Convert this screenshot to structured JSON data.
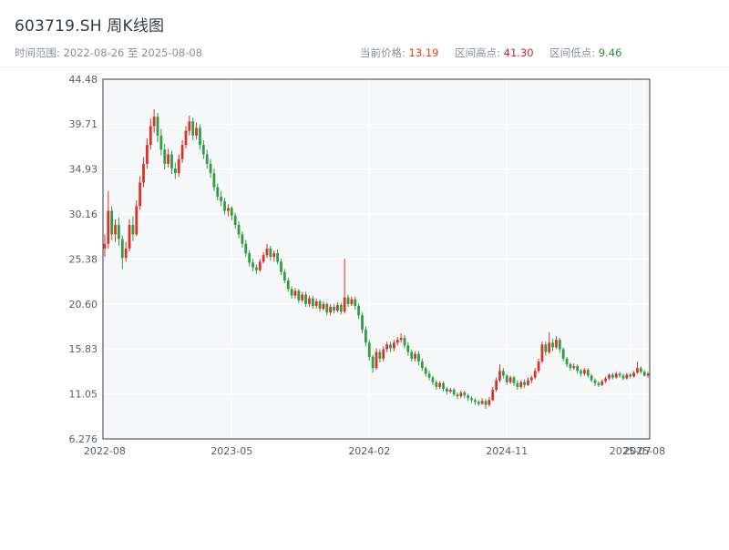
{
  "header": {
    "title": "603719.SH 周K线图",
    "time_range": "时间范围: 2022-08-26 至 2025-08-08",
    "stats": [
      {
        "label": "当前价格:",
        "value": "13.19",
        "color": "#d9480f"
      },
      {
        "label": "区间高点:",
        "value": "41.30",
        "color": "#c92a2a"
      },
      {
        "label": "区间低点:",
        "value": "9.46",
        "color": "#2b8a3e"
      }
    ]
  },
  "chart_data": {
    "type": "candlestick",
    "title": "603719.SH 周K线图",
    "interval": "weekly",
    "start_date": "2022-08-26",
    "end_date": "2025-08-08",
    "current_price": 13.19,
    "range_high": 41.3,
    "range_low": 9.46,
    "ylim": [
      6.276,
      44.48
    ],
    "y_ticks": [
      6.276,
      11.05,
      15.83,
      20.6,
      25.38,
      30.16,
      34.93,
      39.71,
      44.48
    ],
    "y_tick_labels": [
      "6.276",
      "11.05",
      "15.83",
      "20.60",
      "25.38",
      "30.16",
      "34.93",
      "39.71",
      "44.48"
    ],
    "x_tick_labels": [
      "2022-08",
      "2023-05",
      "2024-02",
      "2024-11",
      "2025-07",
      "2025-08"
    ],
    "x_tick_weeks": [
      0,
      36,
      75,
      114,
      149,
      153
    ],
    "up_color": "#d9342b",
    "down_color": "#2f9e44",
    "plot_bg": "#f6f7f9",
    "grid_color": "#ffffff",
    "axis_color": "#3a3a3a",
    "tick_label_color": "#555f6b",
    "grid": true,
    "legend": false,
    "candles_ohlc": [
      [
        26.5,
        28.0,
        25.6,
        27.0
      ],
      [
        27.0,
        32.6,
        26.5,
        30.5
      ],
      [
        30.5,
        31.0,
        27.4,
        28.0
      ],
      [
        28.0,
        29.6,
        27.2,
        29.0
      ],
      [
        29.0,
        29.8,
        26.8,
        27.5
      ],
      [
        27.5,
        27.9,
        24.3,
        25.5
      ],
      [
        25.5,
        27.2,
        25.1,
        26.5
      ],
      [
        26.5,
        29.6,
        26.2,
        29.0
      ],
      [
        29.0,
        29.9,
        27.3,
        28.0
      ],
      [
        28.0,
        31.6,
        27.8,
        31.0
      ],
      [
        31.0,
        34.2,
        30.6,
        33.5
      ],
      [
        33.5,
        36.2,
        33.0,
        35.5
      ],
      [
        35.5,
        38.2,
        35.0,
        37.5
      ],
      [
        37.5,
        40.3,
        37.0,
        39.5
      ],
      [
        39.5,
        41.3,
        38.8,
        40.5
      ],
      [
        40.5,
        40.9,
        37.8,
        38.5
      ],
      [
        38.5,
        39.2,
        36.4,
        37.0
      ],
      [
        37.0,
        37.6,
        34.9,
        35.5
      ],
      [
        35.5,
        37.1,
        35.1,
        36.5
      ],
      [
        36.5,
        36.9,
        34.4,
        35.0
      ],
      [
        35.0,
        35.6,
        33.9,
        34.5
      ],
      [
        34.5,
        36.5,
        34.1,
        36.0
      ],
      [
        36.0,
        38.0,
        35.6,
        37.5
      ],
      [
        37.5,
        39.5,
        37.1,
        39.0
      ],
      [
        39.0,
        40.6,
        38.5,
        40.0
      ],
      [
        40.0,
        40.4,
        38.0,
        38.5
      ],
      [
        38.5,
        39.9,
        38.1,
        39.3
      ],
      [
        39.3,
        39.7,
        37.0,
        37.5
      ],
      [
        37.5,
        38.0,
        36.0,
        36.5
      ],
      [
        36.5,
        37.0,
        35.0,
        35.5
      ],
      [
        35.5,
        36.0,
        34.0,
        34.5
      ],
      [
        34.5,
        35.0,
        32.6,
        33.0
      ],
      [
        33.0,
        33.4,
        31.6,
        32.0
      ],
      [
        32.0,
        32.6,
        31.0,
        31.5
      ],
      [
        31.5,
        31.9,
        30.1,
        30.5
      ],
      [
        30.5,
        31.2,
        29.9,
        30.8
      ],
      [
        30.8,
        31.0,
        29.5,
        30.0
      ],
      [
        30.0,
        30.3,
        28.6,
        29.0
      ],
      [
        29.0,
        29.4,
        27.6,
        28.0
      ],
      [
        28.0,
        28.3,
        26.6,
        27.0
      ],
      [
        27.0,
        27.4,
        25.6,
        26.0
      ],
      [
        26.0,
        26.3,
        24.6,
        25.0
      ],
      [
        25.0,
        25.4,
        24.1,
        24.5
      ],
      [
        24.5,
        24.8,
        23.8,
        24.2
      ],
      [
        24.2,
        25.4,
        24.0,
        25.1
      ],
      [
        25.1,
        26.1,
        24.9,
        25.8
      ],
      [
        25.8,
        27.0,
        25.5,
        26.5
      ],
      [
        26.5,
        26.8,
        25.2,
        25.6
      ],
      [
        25.6,
        26.3,
        25.1,
        26.0
      ],
      [
        26.0,
        26.4,
        24.8,
        25.1
      ],
      [
        25.1,
        25.4,
        23.7,
        24.0
      ],
      [
        24.0,
        24.3,
        22.8,
        23.1
      ],
      [
        23.1,
        23.4,
        21.9,
        22.2
      ],
      [
        22.2,
        22.5,
        21.2,
        21.5
      ],
      [
        21.5,
        22.3,
        21.2,
        22.0
      ],
      [
        22.0,
        22.2,
        20.7,
        21.0
      ],
      [
        21.0,
        21.9,
        20.8,
        21.6
      ],
      [
        21.6,
        21.9,
        20.3,
        20.6
      ],
      [
        20.6,
        21.5,
        20.3,
        21.2
      ],
      [
        21.2,
        21.5,
        20.1,
        20.4
      ],
      [
        20.4,
        21.2,
        20.1,
        20.9
      ],
      [
        20.9,
        21.1,
        19.8,
        20.1
      ],
      [
        20.1,
        20.9,
        19.9,
        20.6
      ],
      [
        20.6,
        20.8,
        19.4,
        19.7
      ],
      [
        19.7,
        20.6,
        19.4,
        20.3
      ],
      [
        20.3,
        20.6,
        19.6,
        19.9
      ],
      [
        19.9,
        20.8,
        19.7,
        20.5
      ],
      [
        20.5,
        20.7,
        19.5,
        19.8
      ],
      [
        19.8,
        25.4,
        19.6,
        21.3
      ],
      [
        21.3,
        21.6,
        20.3,
        20.6
      ],
      [
        20.6,
        21.4,
        20.4,
        21.1
      ],
      [
        21.1,
        21.4,
        20.0,
        20.4
      ],
      [
        20.4,
        20.7,
        19.0,
        19.4
      ],
      [
        19.4,
        19.7,
        17.5,
        17.9
      ],
      [
        17.9,
        18.2,
        16.1,
        16.5
      ],
      [
        16.5,
        16.8,
        14.6,
        15.0
      ],
      [
        15.0,
        15.2,
        13.3,
        13.8
      ],
      [
        13.8,
        15.9,
        13.6,
        15.5
      ],
      [
        15.5,
        15.8,
        14.4,
        14.8
      ],
      [
        14.8,
        16.1,
        14.5,
        15.8
      ],
      [
        15.8,
        16.6,
        15.5,
        16.3
      ],
      [
        16.3,
        16.6,
        15.5,
        15.9
      ],
      [
        15.9,
        16.8,
        15.6,
        16.5
      ],
      [
        16.5,
        17.1,
        16.2,
        16.8
      ],
      [
        16.8,
        17.5,
        16.5,
        17.0
      ],
      [
        17.0,
        17.3,
        15.9,
        16.2
      ],
      [
        16.2,
        16.5,
        15.1,
        15.5
      ],
      [
        15.5,
        15.8,
        14.5,
        14.8
      ],
      [
        14.8,
        15.6,
        14.5,
        15.3
      ],
      [
        15.3,
        15.6,
        14.1,
        14.5
      ],
      [
        14.5,
        14.8,
        13.5,
        13.8
      ],
      [
        13.8,
        14.0,
        12.9,
        13.2
      ],
      [
        13.2,
        13.5,
        12.5,
        12.8
      ],
      [
        12.8,
        13.0,
        12.0,
        12.3
      ],
      [
        12.3,
        12.5,
        11.5,
        11.8
      ],
      [
        11.8,
        12.4,
        11.6,
        12.2
      ],
      [
        12.2,
        12.4,
        11.3,
        11.6
      ],
      [
        11.6,
        11.8,
        11.0,
        11.3
      ],
      [
        11.3,
        11.7,
        11.1,
        11.5
      ],
      [
        11.5,
        11.7,
        10.8,
        11.0
      ],
      [
        11.0,
        11.2,
        10.5,
        10.8
      ],
      [
        10.8,
        11.4,
        10.6,
        11.2
      ],
      [
        11.2,
        11.4,
        10.6,
        10.9
      ],
      [
        10.9,
        11.1,
        10.3,
        10.6
      ],
      [
        10.6,
        10.8,
        10.1,
        10.4
      ],
      [
        10.4,
        10.6,
        9.9,
        10.2
      ],
      [
        10.2,
        10.4,
        9.8,
        10.0
      ],
      [
        10.0,
        10.6,
        9.9,
        10.3
      ],
      [
        10.3,
        10.5,
        9.46,
        9.9
      ],
      [
        9.9,
        10.7,
        9.7,
        10.4
      ],
      [
        10.4,
        11.8,
        10.3,
        11.5
      ],
      [
        11.5,
        12.8,
        11.3,
        12.5
      ],
      [
        12.5,
        14.2,
        12.3,
        13.5
      ],
      [
        13.5,
        13.8,
        12.7,
        13.0
      ],
      [
        13.0,
        13.2,
        12.0,
        12.3
      ],
      [
        12.3,
        13.0,
        12.1,
        12.8
      ],
      [
        12.8,
        13.0,
        11.9,
        12.2
      ],
      [
        12.2,
        12.5,
        11.5,
        11.8
      ],
      [
        11.8,
        12.5,
        11.6,
        12.3
      ],
      [
        12.3,
        12.6,
        11.7,
        12.0
      ],
      [
        12.0,
        12.8,
        11.9,
        12.5
      ],
      [
        12.5,
        13.0,
        12.2,
        12.8
      ],
      [
        12.8,
        13.8,
        12.6,
        13.5
      ],
      [
        13.5,
        14.8,
        13.3,
        14.5
      ],
      [
        14.5,
        16.6,
        14.3,
        16.3
      ],
      [
        16.3,
        16.6,
        15.1,
        15.5
      ],
      [
        15.5,
        17.6,
        15.3,
        16.5
      ],
      [
        16.5,
        16.9,
        15.6,
        16.0
      ],
      [
        16.0,
        17.2,
        15.8,
        16.8
      ],
      [
        16.8,
        17.0,
        15.4,
        15.8
      ],
      [
        15.8,
        16.0,
        14.5,
        14.8
      ],
      [
        14.8,
        15.0,
        13.9,
        14.2
      ],
      [
        14.2,
        14.4,
        13.5,
        13.8
      ],
      [
        13.8,
        14.3,
        13.6,
        14.0
      ],
      [
        14.0,
        14.2,
        13.2,
        13.5
      ],
      [
        13.5,
        13.7,
        12.9,
        13.2
      ],
      [
        13.2,
        13.8,
        13.0,
        13.6
      ],
      [
        13.6,
        13.8,
        12.8,
        13.0
      ],
      [
        13.0,
        13.2,
        12.3,
        12.5
      ],
      [
        12.5,
        12.7,
        11.9,
        12.2
      ],
      [
        12.2,
        12.4,
        11.8,
        12.0
      ],
      [
        12.0,
        12.6,
        11.9,
        12.4
      ],
      [
        12.4,
        12.9,
        12.2,
        12.7
      ],
      [
        12.7,
        13.2,
        12.5,
        13.1
      ],
      [
        13.1,
        13.3,
        12.6,
        12.8
      ],
      [
        12.8,
        13.4,
        12.7,
        13.2
      ],
      [
        13.2,
        13.4,
        12.8,
        13.0
      ],
      [
        13.0,
        13.2,
        12.5,
        12.7
      ],
      [
        12.7,
        13.3,
        12.6,
        13.1
      ],
      [
        13.1,
        13.3,
        12.7,
        12.9
      ],
      [
        12.9,
        13.5,
        12.8,
        13.3
      ],
      [
        13.3,
        14.5,
        13.2,
        13.8
      ],
      [
        13.8,
        14.0,
        13.2,
        13.4
      ],
      [
        13.4,
        13.6,
        12.9,
        13.0
      ],
      [
        13.0,
        13.4,
        12.8,
        13.19
      ]
    ]
  }
}
